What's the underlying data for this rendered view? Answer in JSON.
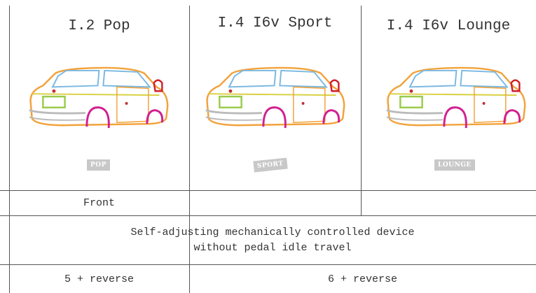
{
  "header": [
    {
      "model": "I.2 Pop",
      "badge": "POP"
    },
    {
      "model": "I.4 I6v Sport",
      "badge": "SPORT"
    },
    {
      "model": "I.4 I6v Lounge",
      "badge": "LOUNGE"
    }
  ],
  "rows": [
    [
      "Front"
    ],
    [
      "Self-adjusting mechanically controlled device without pedal idle travel"
    ],
    [
      "5 + reverse",
      "6 + reverse"
    ]
  ]
}
